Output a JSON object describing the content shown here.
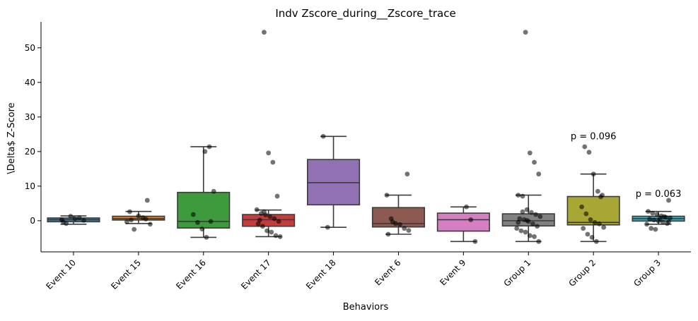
{
  "chart_data": {
    "type": "box",
    "title": "Indv Zscore_during__Zscore_trace",
    "xlabel": "Behaviors",
    "ylabel": "\\Delta$ Z-Score",
    "ylim": [
      -9,
      57.5
    ],
    "yticks": [
      0,
      10,
      20,
      30,
      40,
      50
    ],
    "categories": [
      "Event 10",
      "Event 15",
      "Event 16",
      "Event 17",
      "Event 18",
      "Event 6",
      "Event 9",
      "Group 1",
      "Group 2",
      "Group 3"
    ],
    "colors": [
      "#3a7aa4",
      "#e07c21",
      "#3d9a3d",
      "#c83b3b",
      "#9170b3",
      "#8c5a50",
      "#d47fc1",
      "#808080",
      "#a8a635",
      "#35aebf"
    ],
    "boxes": [
      {
        "whislo": -1.0,
        "q1": -0.3,
        "med": 0.3,
        "q3": 0.8,
        "whishi": 1.4,
        "fliers": []
      },
      {
        "whislo": -0.8,
        "q1": 0.2,
        "med": 0.6,
        "q3": 1.3,
        "whishi": 2.7,
        "fliers": [
          5.9
        ]
      },
      {
        "whislo": -4.8,
        "q1": -2.1,
        "med": -0.2,
        "q3": 8.2,
        "whishi": 21.4,
        "fliers": []
      },
      {
        "whislo": -4.6,
        "q1": -1.6,
        "med": 0.3,
        "q3": 1.8,
        "whishi": 3.1,
        "fliers": [
          7.1,
          16.9,
          19.6,
          54.5
        ]
      },
      {
        "whislo": -1.9,
        "q1": 4.6,
        "med": 11.0,
        "q3": 17.7,
        "whishi": 24.4,
        "fliers": []
      },
      {
        "whislo": -3.9,
        "q1": -1.8,
        "med": -0.8,
        "q3": 3.8,
        "whishi": 7.4,
        "fliers": [
          13.5
        ]
      },
      {
        "whislo": -6.0,
        "q1": -3.0,
        "med": 0.3,
        "q3": 2.2,
        "whishi": 4.0,
        "fliers": []
      },
      {
        "whislo": -6.0,
        "q1": -1.5,
        "med": 0.0,
        "q3": 2.0,
        "whishi": 7.4,
        "fliers": [
          13.5,
          16.9,
          19.6,
          54.5
        ]
      },
      {
        "whislo": -6.0,
        "q1": -1.2,
        "med": -0.5,
        "q3": 7.0,
        "whishi": 13.5,
        "fliers": [
          19.8,
          21.4
        ]
      },
      {
        "whislo": -1.0,
        "q1": -0.1,
        "med": 0.6,
        "q3": 1.3,
        "whishi": 2.7,
        "fliers": [
          5.9
        ]
      }
    ],
    "points": [
      [
        0.3,
        -0.8,
        1.3,
        0.6,
        0.9,
        0.1,
        -0.4
      ],
      [
        0.5,
        -1.0,
        2.6,
        -2.5,
        1.4,
        0.9,
        5.9,
        -0.3,
        0.2
      ],
      [
        20.0,
        21.4,
        8.5,
        1.8,
        -0.5,
        -2.4,
        -4.8,
        -0.2
      ],
      [
        54.5,
        19.6,
        16.9,
        7.1,
        3.2,
        2.1,
        1.7,
        1.2,
        0.6,
        -0.2,
        -0.9,
        -1.6,
        -2.9,
        -3.3,
        -4.3,
        -4.6,
        0.2,
        2.6
      ],
      [
        24.4,
        -1.9
      ],
      [
        13.5,
        7.4,
        0.6,
        -0.8,
        -1.1,
        -2.2,
        -2.8,
        -3.9,
        -0.3
      ],
      [
        4.0,
        0.3,
        -6.0
      ],
      [
        54.5,
        19.6,
        16.9,
        13.5,
        7.4,
        7.1,
        3.2,
        2.4,
        1.8,
        1.2,
        0.6,
        0.3,
        -0.2,
        -0.9,
        -1.6,
        -2.2,
        -2.9,
        -3.3,
        -4.3,
        -4.6,
        -6.0,
        -0.5,
        2.6,
        0.1
      ],
      [
        21.4,
        19.8,
        13.5,
        8.5,
        7.4,
        4.0,
        2.0,
        0.3,
        -0.5,
        -0.9,
        -1.9,
        -2.2,
        -3.9,
        -4.8,
        -6.0,
        6.9
      ],
      [
        5.9,
        2.7,
        2.2,
        1.8,
        1.4,
        1.0,
        0.8,
        0.5,
        0.2,
        -0.1,
        -0.4,
        -0.8,
        -1.0,
        -2.2,
        -2.5,
        0.6,
        1.2,
        -0.3
      ]
    ],
    "annotations": [
      {
        "category": "Group 2",
        "y": 23.5,
        "text": "p = 0.096"
      },
      {
        "category": "Group 3",
        "y": 6.9,
        "text": "p = 0.063"
      }
    ],
    "grid": false,
    "legend": "none"
  }
}
